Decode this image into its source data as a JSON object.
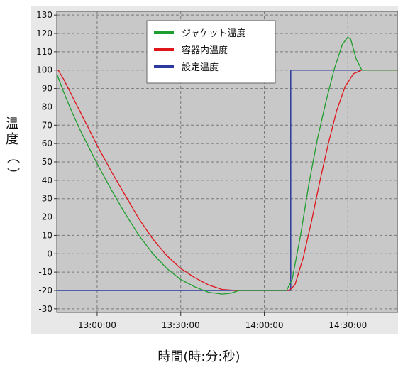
{
  "chart_data": {
    "type": "line",
    "ylabel": "温度（）",
    "ylabel_chars": [
      "温",
      "度",
      "（",
      "）"
    ],
    "xlabel": "時間(時:分:秒)",
    "ylim": [
      -32,
      132
    ],
    "xlim": [
      "12:45:30",
      "14:48:00"
    ],
    "yticks": [
      130,
      120,
      110,
      100,
      90,
      80,
      70,
      60,
      50,
      40,
      30,
      20,
      10,
      0,
      -10,
      -20,
      -30
    ],
    "xticks": [
      {
        "label": "13:00:00",
        "value": "13:00:00"
      },
      {
        "label": "13:30:00",
        "value": "13:30:00"
      },
      {
        "label": "14:00:00",
        "value": "14:00:00"
      },
      {
        "label": "14:30:00",
        "value": "14:30:00"
      }
    ],
    "grid": true,
    "legend_position": "top-center",
    "series": [
      {
        "name": "ジャケット温度",
        "color": "#1e9e2c",
        "points": [
          [
            "12:40:00",
            100
          ],
          [
            "12:45:00",
            100
          ],
          [
            "12:45:30",
            98
          ],
          [
            "12:48:00",
            88
          ],
          [
            "12:51:00",
            77
          ],
          [
            "12:54:00",
            67
          ],
          [
            "12:57:00",
            58
          ],
          [
            "13:00:00",
            49
          ],
          [
            "13:05:00",
            35
          ],
          [
            "13:10:00",
            22
          ],
          [
            "13:15:00",
            10
          ],
          [
            "13:20:00",
            0
          ],
          [
            "13:25:00",
            -8
          ],
          [
            "13:30:00",
            -14
          ],
          [
            "13:35:00",
            -18
          ],
          [
            "13:40:00",
            -21
          ],
          [
            "13:45:00",
            -22
          ],
          [
            "13:48:00",
            -21.5
          ],
          [
            "13:51:00",
            -20
          ],
          [
            "13:55:00",
            -20
          ],
          [
            "14:00:00",
            -20
          ],
          [
            "14:08:00",
            -20
          ],
          [
            "14:10:00",
            -14
          ],
          [
            "14:13:00",
            10
          ],
          [
            "14:16:00",
            38
          ],
          [
            "14:19:00",
            62
          ],
          [
            "14:22:00",
            82
          ],
          [
            "14:25:00",
            100
          ],
          [
            "14:28:00",
            114
          ],
          [
            "14:30:00",
            118
          ],
          [
            "14:31:00",
            117
          ],
          [
            "14:33:00",
            106
          ],
          [
            "14:35:00",
            100
          ],
          [
            "14:40:00",
            100
          ],
          [
            "14:48:00",
            100
          ]
        ]
      },
      {
        "name": "容器内温度",
        "color": "#e0141b",
        "points": [
          [
            "12:40:00",
            100
          ],
          [
            "12:46:00",
            100
          ],
          [
            "12:48:00",
            95
          ],
          [
            "12:51:00",
            86
          ],
          [
            "12:54:00",
            77
          ],
          [
            "12:57:00",
            68
          ],
          [
            "13:00:00",
            59
          ],
          [
            "13:05:00",
            45
          ],
          [
            "13:10:00",
            32
          ],
          [
            "13:15:00",
            19
          ],
          [
            "13:20:00",
            8
          ],
          [
            "13:25:00",
            -1
          ],
          [
            "13:30:00",
            -8
          ],
          [
            "13:35:00",
            -13
          ],
          [
            "13:40:00",
            -17
          ],
          [
            "13:45:00",
            -19.5
          ],
          [
            "13:50:00",
            -20
          ],
          [
            "13:55:00",
            -20
          ],
          [
            "14:00:00",
            -20
          ],
          [
            "14:09:00",
            -20
          ],
          [
            "14:11:00",
            -17
          ],
          [
            "14:14:00",
            -2
          ],
          [
            "14:17:00",
            18
          ],
          [
            "14:20:00",
            40
          ],
          [
            "14:23:00",
            60
          ],
          [
            "14:26:00",
            78
          ],
          [
            "14:29:00",
            91
          ],
          [
            "14:32:00",
            98
          ],
          [
            "14:35:00",
            100
          ],
          [
            "14:48:00",
            100
          ]
        ]
      },
      {
        "name": "設定温度",
        "color": "#2b3a9e",
        "points": [
          [
            "12:40:00",
            100
          ],
          [
            "12:45:30",
            100
          ],
          [
            "12:45:30",
            -20
          ],
          [
            "14:09:30",
            -20
          ],
          [
            "14:09:30",
            100
          ],
          [
            "14:48:00",
            100
          ]
        ]
      }
    ]
  }
}
